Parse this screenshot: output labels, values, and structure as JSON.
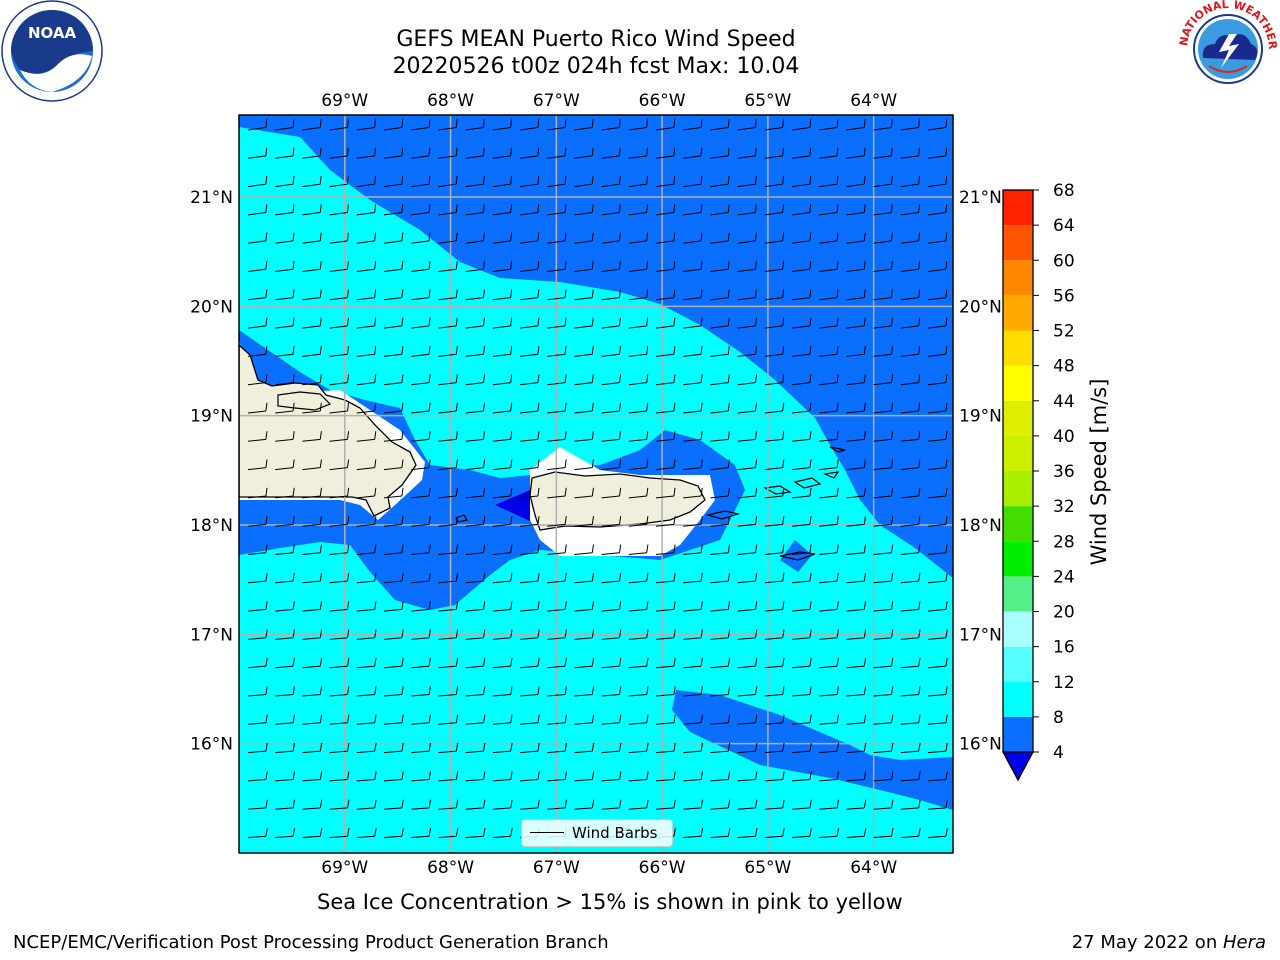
{
  "title": {
    "line1": "GEFS MEAN Puerto Rico Wind Speed",
    "line2": "20220526 t00z 024h fcst   Max: 10.04"
  },
  "map": {
    "lon_labels": [
      "69°W",
      "68°W",
      "67°W",
      "66°W",
      "65°W",
      "64°W"
    ],
    "lat_labels": [
      "21°N",
      "20°N",
      "19°N",
      "18°N",
      "17°N",
      "16°N"
    ],
    "lon_values": [
      -69,
      -68,
      -67,
      -66,
      -65,
      -64
    ],
    "lat_values": [
      21,
      20,
      19,
      18,
      17,
      16
    ],
    "lon_range": [
      -70,
      -63.25
    ],
    "lat_range": [
      15,
      21.75
    ],
    "legend_label": "Wind Barbs",
    "colors": {
      "land": "#efefdc",
      "wind_4_8": "#0a6fff",
      "wind_8_12": "#00ffff",
      "wind_below_4": "#0000e6",
      "grid": "#b0b0b0"
    }
  },
  "colorbar": {
    "title": "Wind Speed [m/s]",
    "levels": [
      "4",
      "8",
      "12",
      "16",
      "20",
      "24",
      "28",
      "32",
      "36",
      "40",
      "44",
      "48",
      "52",
      "56",
      "60",
      "64",
      "68"
    ],
    "colors": [
      "#0a6fff",
      "#00ffff",
      "#55ffff",
      "#aaffff",
      "#55ee88",
      "#00ee00",
      "#44dd00",
      "#aaee00",
      "#ccee00",
      "#ddee00",
      "#ffff00",
      "#ffdd00",
      "#ffaa00",
      "#ff8800",
      "#ff5500",
      "#ff2200"
    ],
    "extend_color": "#0000ee"
  },
  "subtitle": "Sea Ice Concentration > 15% is shown in pink to yellow",
  "footer": {
    "left": "NCEP/EMC/Verification Post Processing Product Generation Branch",
    "right_prefix": "27 May 2022 on ",
    "right_host": "Hera"
  },
  "logos": {
    "noaa": "NOAA",
    "nws": "NATIONAL WEATHER SERVICE"
  }
}
